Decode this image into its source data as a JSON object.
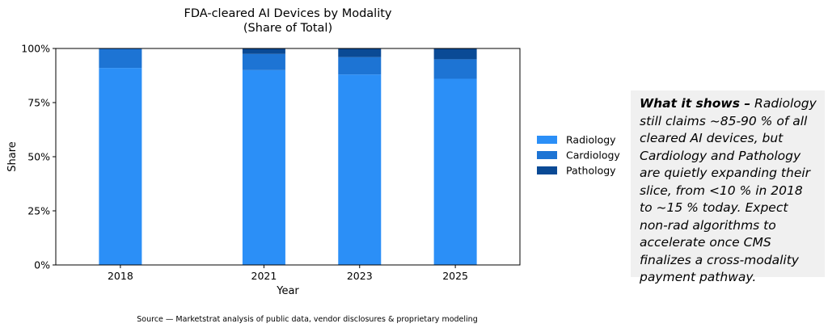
{
  "chart_data": {
    "type": "bar",
    "stacked": true,
    "title": "FDA-cleared AI Devices by Modality",
    "subtitle": "(Share of Total)",
    "xlabel": "Year",
    "ylabel": "Share",
    "x": [
      2018,
      2021,
      2023,
      2025
    ],
    "ylim": [
      0,
      1
    ],
    "yticks": [
      0,
      0.25,
      0.5,
      0.75,
      1
    ],
    "ytick_labels": [
      "0%",
      "25%",
      "50%",
      "75%",
      "100%"
    ],
    "grid": false,
    "legend_position": "right, outside plot",
    "series": [
      {
        "name": "Radiology",
        "color": "#2b8ff7",
        "values": [
          0.91,
          0.9,
          0.88,
          0.86
        ]
      },
      {
        "name": "Cardiology",
        "color": "#1d74d4",
        "values": [
          0.09,
          0.075,
          0.08,
          0.09
        ]
      },
      {
        "name": "Pathology",
        "color": "#0a4a95",
        "values": [
          0.0,
          0.025,
          0.04,
          0.05
        ]
      }
    ]
  },
  "note": {
    "lead": "What it shows –",
    "body": " Radiology still claims ~85-90 % of all cleared AI devices, but Cardiology and Pathology are quietly expanding their slice, from <10 % in 2018 to ~15 % today. Expect non-rad algorithms to accelerate once CMS finalizes a cross-modality payment pathway."
  },
  "source": "Source — Marketstrat analysis of public data, vendor disclosures & proprietary modeling"
}
